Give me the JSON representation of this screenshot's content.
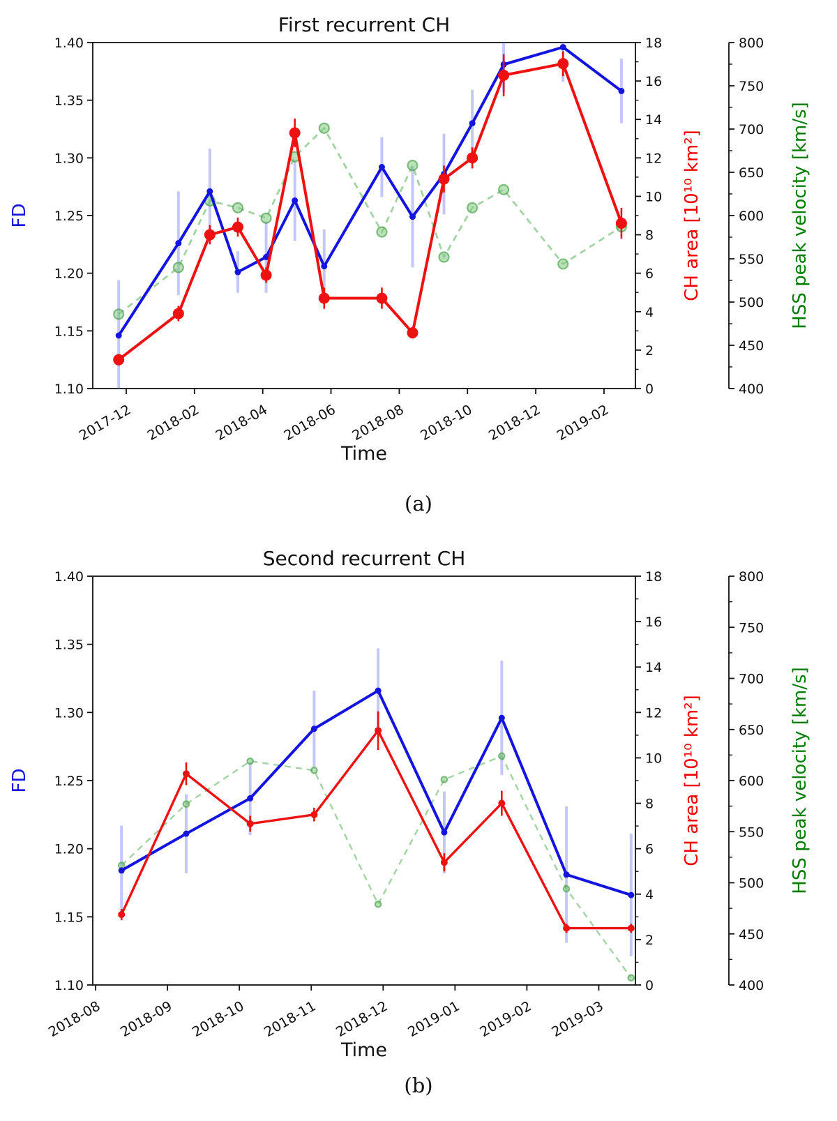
{
  "chart_data": [
    {
      "id": "a",
      "type": "line",
      "title": "First recurrent CH",
      "caption": "(a)",
      "xlabel": "Time",
      "x_axis": {
        "tick_labels": [
          "2017-12",
          "2018-02",
          "2018-04",
          "2018-06",
          "2018-08",
          "2018-10",
          "2018-12",
          "2019-02"
        ],
        "tick_months": [
          0,
          2,
          4,
          6,
          8,
          10,
          12,
          14
        ],
        "domain_months": [
          -0.98,
          14.92
        ]
      },
      "axes": [
        {
          "name": "fd",
          "label": "FD",
          "color": "#1414e0",
          "range": [
            1.1,
            1.4
          ],
          "tick_values": [
            1.1,
            1.15,
            1.2,
            1.25,
            1.3,
            1.35,
            1.4
          ],
          "tick_labels": [
            "1.10",
            "1.15",
            "1.20",
            "1.25",
            "1.30",
            "1.35",
            "1.40"
          ],
          "minor_step": 0
        },
        {
          "name": "ch-area",
          "label": "CH area [10¹⁰ km²]",
          "color": "#ee0000",
          "range": [
            0,
            18
          ],
          "tick_values": [
            0,
            2,
            4,
            6,
            8,
            10,
            12,
            14,
            16,
            18
          ],
          "tick_labels": [
            "0",
            "2",
            "4",
            "6",
            "8",
            "10",
            "12",
            "14",
            "16",
            "18"
          ],
          "minor_step": 1
        },
        {
          "name": "hss-velocity",
          "label": "HSS peak velocity [km/s]",
          "color": "#007d00",
          "range": [
            400,
            800
          ],
          "tick_values": [
            400,
            450,
            500,
            550,
            600,
            650,
            700,
            750,
            800
          ],
          "tick_labels": [
            "400",
            "450",
            "500",
            "550",
            "600",
            "650",
            "700",
            "750",
            "800"
          ],
          "minor_step": 25
        }
      ],
      "series": [
        {
          "name": "FD",
          "axis": "fd",
          "color": "#1414e0",
          "err_color": "rgba(115,125,238,0.42)",
          "x_months": [
            -0.22,
            1.53,
            2.45,
            3.27,
            4.1,
            4.94,
            5.8,
            7.49,
            8.39,
            9.31,
            10.14,
            11.06,
            12.8,
            14.51
          ],
          "y": [
            1.146,
            1.226,
            1.271,
            1.201,
            1.214,
            1.263,
            1.206,
            1.292,
            1.249,
            1.286,
            1.33,
            1.381,
            1.396,
            1.358
          ],
          "err": [
            0.048,
            0.045,
            0.037,
            0.018,
            0.031,
            0.035,
            0.032,
            0.026,
            0.044,
            0.035,
            0.029,
            0.024,
            0.03,
            0.028
          ]
        },
        {
          "name": "CH area",
          "axis": "ch-area",
          "color": "#ee1111",
          "err_color": "#ee1111",
          "x_months": [
            -0.22,
            1.53,
            2.45,
            3.27,
            4.1,
            4.94,
            5.8,
            7.49,
            8.39,
            9.31,
            10.14,
            11.06,
            12.8,
            14.51
          ],
          "y": [
            1.5,
            3.9,
            8.0,
            8.4,
            5.9,
            13.3,
            4.7,
            4.7,
            2.9,
            10.9,
            12.0,
            16.3,
            16.9,
            8.6
          ],
          "err": [
            0.3,
            0.4,
            0.5,
            0.5,
            0.4,
            0.75,
            0.55,
            0.55,
            0.3,
            0.7,
            0.55,
            1.1,
            0.65,
            0.8
          ]
        },
        {
          "name": "HSS peak velocity",
          "axis": "hss-velocity",
          "color": "rgba(85,175,85,0.55)",
          "marker_fill": "rgba(130,200,130,0.55)",
          "marker_edge": "rgba(70,160,70,0.65)",
          "x_months": [
            -0.22,
            1.53,
            2.45,
            3.27,
            4.1,
            4.94,
            5.8,
            7.49,
            8.39,
            9.31,
            10.14,
            11.06,
            12.8,
            14.51
          ],
          "y": [
            486,
            540,
            617,
            609,
            597,
            668,
            701,
            581,
            658,
            552,
            609,
            630,
            544,
            587
          ],
          "err": []
        }
      ]
    },
    {
      "id": "b",
      "type": "line",
      "title": "Second recurrent CH",
      "caption": "(b)",
      "xlabel": "Time",
      "x_axis": {
        "tick_labels": [
          "2018-08",
          "2018-09",
          "2018-10",
          "2018-11",
          "2018-12",
          "2019-01",
          "2019-02",
          "2019-03"
        ],
        "tick_months": [
          0,
          1,
          2,
          3,
          4,
          5,
          6,
          7
        ],
        "domain_months": [
          -0.04,
          7.51
        ]
      },
      "axes": [
        {
          "name": "fd",
          "label": "FD",
          "color": "#1414e0",
          "range": [
            1.1,
            1.4
          ],
          "tick_values": [
            1.1,
            1.15,
            1.2,
            1.25,
            1.3,
            1.35,
            1.4
          ],
          "tick_labels": [
            "1.10",
            "1.15",
            "1.20",
            "1.25",
            "1.30",
            "1.35",
            "1.40"
          ],
          "minor_step": 0
        },
        {
          "name": "ch-area",
          "label": "CH area [10¹⁰ km²]",
          "color": "#ee0000",
          "range": [
            0,
            18
          ],
          "tick_values": [
            0,
            2,
            4,
            6,
            8,
            10,
            12,
            14,
            16,
            18
          ],
          "tick_labels": [
            "0",
            "2",
            "4",
            "6",
            "8",
            "10",
            "12",
            "14",
            "16",
            "18"
          ],
          "minor_step": 1
        },
        {
          "name": "hss-velocity",
          "label": "HSS peak velocity [km/s]",
          "color": "#007d00",
          "range": [
            400,
            800
          ],
          "tick_values": [
            400,
            450,
            500,
            550,
            600,
            650,
            700,
            750,
            800
          ],
          "tick_labels": [
            "400",
            "450",
            "500",
            "550",
            "600",
            "650",
            "700",
            "750",
            "800"
          ],
          "minor_step": 25
        }
      ],
      "series": [
        {
          "name": "FD",
          "axis": "fd",
          "color": "#1414e0",
          "err_color": "rgba(115,125,238,0.42)",
          "x_months": [
            0.36,
            1.26,
            2.15,
            3.04,
            3.93,
            4.85,
            5.65,
            6.55,
            7.45
          ],
          "y": [
            1.184,
            1.211,
            1.237,
            1.288,
            1.316,
            1.212,
            1.296,
            1.181,
            1.166
          ],
          "err": [
            0.033,
            0.029,
            0.027,
            0.028,
            0.031,
            0.03,
            0.042,
            0.05,
            0.045
          ]
        },
        {
          "name": "CH area",
          "axis": "ch-area",
          "color": "#ee1111",
          "err_color": "#ee1111",
          "x_months": [
            0.36,
            1.26,
            2.15,
            3.04,
            3.93,
            4.85,
            5.65,
            6.55,
            7.45
          ],
          "y": [
            3.1,
            9.3,
            7.1,
            7.5,
            11.2,
            5.4,
            8.0,
            2.5,
            2.5
          ],
          "err": [
            0.25,
            0.5,
            0.35,
            0.3,
            0.85,
            0.4,
            0.55,
            0.2,
            0.2
          ]
        },
        {
          "name": "HSS peak velocity",
          "axis": "hss-velocity",
          "color": "rgba(85,175,85,0.55)",
          "marker_fill": "rgba(130,200,130,0.55)",
          "marker_edge": "rgba(70,160,70,0.65)",
          "x_months": [
            0.36,
            1.26,
            2.15,
            3.04,
            3.93,
            4.85,
            5.65,
            6.55,
            7.45
          ],
          "y": [
            517,
            577,
            619,
            610,
            479,
            601,
            624,
            494,
            407
          ],
          "err": []
        }
      ]
    }
  ]
}
